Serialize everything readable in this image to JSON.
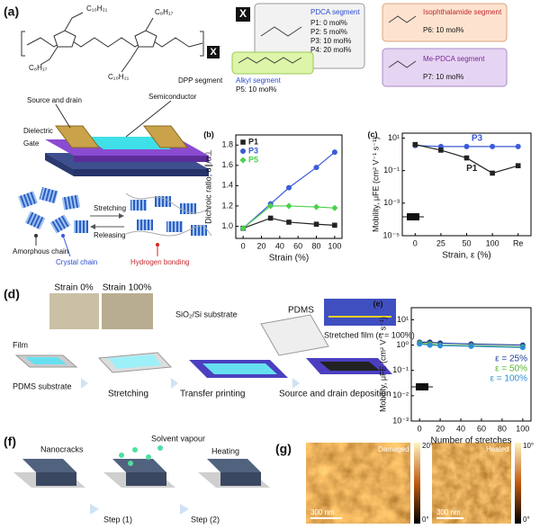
{
  "panel_a": {
    "label": "(a)",
    "x_marker": "X",
    "side_chains": [
      "C₁₀H₂₁",
      "C₈H₁₇",
      "C₈H₁₇",
      "C₁₀H₂₁"
    ],
    "dpp": "DPP segment",
    "segments": [
      {
        "name": "PDCA segment",
        "items": [
          "P1: 0 mol%",
          "P2: 5 mol%",
          "P3: 10 mol%",
          "P4: 20 mol%"
        ]
      },
      {
        "name": "Isophthalamide segment",
        "items": [
          "P6: 10 mol%"
        ]
      },
      {
        "name": "Alkyl segment",
        "items": [
          "P5: 10 mol%"
        ]
      },
      {
        "name": "Me-PDCA segment",
        "items": [
          "P7: 10 mol%"
        ]
      }
    ],
    "device": [
      "Source and drain",
      "Dielectric",
      "Gate",
      "Semiconductor"
    ],
    "chains": [
      "Stretching",
      "Releasing",
      "Amorphous chain",
      "Crystal chain",
      "Hydrogen bonding"
    ]
  },
  "panel_d": {
    "label": "(d)",
    "texts": [
      "Strain 0%",
      "Strain 100%",
      "SiO₂/Si substrate",
      "PDMS",
      "Stretched film (ε = 100%)",
      "Film",
      "PDMS substrate",
      "Stretching",
      "Transfer printing",
      "Source and drain deposition"
    ]
  },
  "panel_f": {
    "label": "(f)",
    "texts": [
      "Nanocracks",
      "Solvent vapour",
      "Heating",
      "Step (1)",
      "Step (2)"
    ]
  },
  "panel_g": {
    "label": "(g)",
    "images": [
      {
        "name": "Damaged",
        "scale_bar": "300 nm",
        "color_max": "20°",
        "color_min": "0°"
      },
      {
        "name": "Healed",
        "scale_bar": "300 nm",
        "color_max": "10°",
        "color_min": "0°"
      }
    ]
  },
  "chart_data": [
    {
      "type": "line",
      "title": "(b)",
      "x": [
        0,
        30,
        50,
        80,
        100
      ],
      "xlim": [
        -8,
        108
      ],
      "xticks": [
        0,
        20,
        40,
        60,
        80,
        100
      ],
      "ylim": [
        0.88,
        1.9
      ],
      "yticks": [
        {
          "value": 1,
          "label": "1.0"
        },
        {
          "value": 1.2,
          "label": "1.2"
        },
        {
          "value": 1.4,
          "label": "1.4"
        },
        {
          "value": 1.6,
          "label": "1.6"
        },
        {
          "value": 1.8,
          "label": "1.8"
        }
      ],
      "xlabel": "Strain (%)",
      "ylabel": "Dichroic ratio, α∥/α⊥",
      "legend": "upper left",
      "series": [
        {
          "name": "P1",
          "color": "#222222",
          "marker": "square",
          "values": [
            0.98,
            1.08,
            1.04,
            1.02,
            1.01
          ]
        },
        {
          "name": "P3",
          "color": "#3a5bd9",
          "marker": "circle",
          "values": [
            0.98,
            1.22,
            1.38,
            1.58,
            1.73
          ]
        },
        {
          "name": "P5",
          "color": "#4cd14c",
          "marker": "diamond",
          "values": [
            0.98,
            1.2,
            1.2,
            1.19,
            1.18
          ]
        }
      ]
    },
    {
      "type": "line",
      "title": "(c)",
      "categories": [
        "0",
        "25",
        "50",
        "100",
        "Re"
      ],
      "yscale": "log",
      "ylim": [
        1e-05,
        20
      ],
      "yticks": [
        {
          "value": 1e-05,
          "label": "10⁻⁵"
        },
        {
          "value": 0.001,
          "label": "10⁻³"
        },
        {
          "value": 0.1,
          "label": "10⁻¹"
        },
        {
          "value": 10,
          "label": "10¹"
        }
      ],
      "xlabel": "Strain, ε (%)",
      "ylabel": "Mobility, μFE (cm² V⁻¹ s⁻¹)",
      "legend": "inline",
      "series": [
        {
          "name": "P3",
          "color": "#3a5bd9",
          "marker": "circle",
          "values": [
            3.5,
            3,
            3,
            3,
            3
          ]
        },
        {
          "name": "P1",
          "color": "#222222",
          "marker": "square",
          "values": [
            4,
            1.8,
            0.6,
            0.07,
            0.2
          ]
        }
      ]
    },
    {
      "type": "line",
      "title": "(e)",
      "x": [
        0,
        10,
        20,
        50,
        100
      ],
      "xlim": [
        -8,
        108
      ],
      "xticks": [
        0,
        20,
        40,
        60,
        80,
        100
      ],
      "yscale": "log",
      "ylim": [
        0.001,
        30
      ],
      "yticks": [
        {
          "value": 0.001,
          "label": "10⁻³"
        },
        {
          "value": 0.01,
          "label": "10⁻²"
        },
        {
          "value": 0.1,
          "label": "10⁻¹"
        },
        {
          "value": 1,
          "label": "10⁰"
        },
        {
          "value": 10,
          "label": "10¹"
        }
      ],
      "xlabel": "Number of stretches",
      "ylabel": "Mobility, μFE (cm² V⁻¹ s⁻¹)",
      "legend": "right",
      "series": [
        {
          "name": "ε = 25%",
          "color": "#1f3d99",
          "marker": "circle",
          "values": [
            1.3,
            1.3,
            1.2,
            1.1,
            1.0
          ]
        },
        {
          "name": "ε = 50%",
          "color": "#5ab52e",
          "marker": "circle",
          "values": [
            1.2,
            1.1,
            1.0,
            0.95,
            0.85
          ]
        },
        {
          "name": "ε = 100%",
          "color": "#2f8fd6",
          "marker": "circle",
          "values": [
            1.1,
            1.0,
            0.95,
            0.9,
            0.8
          ]
        }
      ]
    }
  ]
}
